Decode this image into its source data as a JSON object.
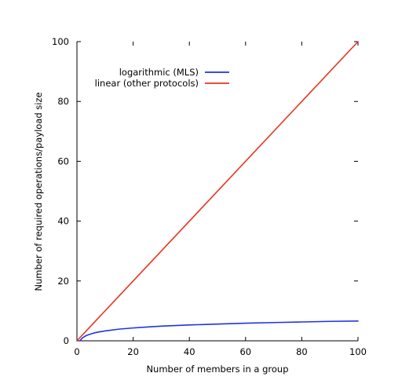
{
  "chart_data": {
    "type": "line",
    "xlabel": "Number of members in a group",
    "ylabel": "Number of required operations/payload size",
    "xlim": [
      0,
      100
    ],
    "ylim": [
      0,
      100
    ],
    "x_ticks": [
      0,
      20,
      40,
      60,
      80,
      100
    ],
    "y_ticks": [
      0,
      20,
      40,
      60,
      80,
      100
    ],
    "grid": false,
    "legend_position": "top-left",
    "series": [
      {
        "name": "logarithmic (MLS)",
        "color": "#1f33e6",
        "x": [
          1,
          2,
          3,
          4,
          5,
          6,
          8,
          10,
          15,
          20,
          25,
          30,
          40,
          50,
          60,
          70,
          80,
          90,
          100
        ],
        "y": [
          0,
          1.0,
          1.6,
          2.0,
          2.3,
          2.6,
          3.0,
          3.3,
          3.9,
          4.3,
          4.6,
          4.9,
          5.3,
          5.6,
          5.9,
          6.1,
          6.3,
          6.5,
          6.6
        ]
      },
      {
        "name": "linear (other protocols)",
        "color": "#e8331f",
        "x": [
          0,
          100
        ],
        "y": [
          0,
          100
        ]
      }
    ]
  }
}
